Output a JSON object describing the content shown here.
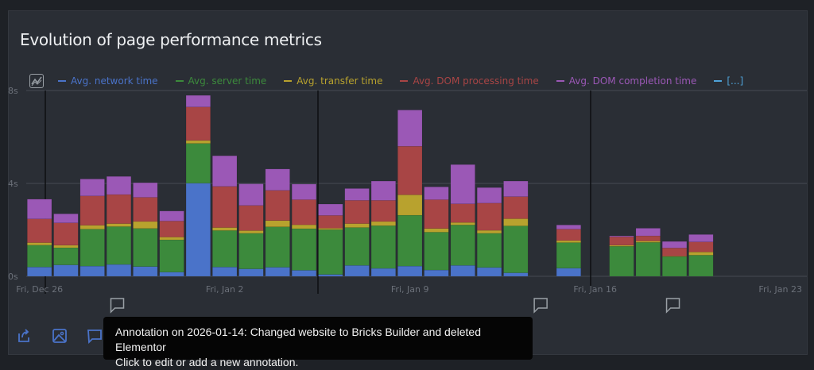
{
  "title": "Evolution of page performance metrics",
  "legend_toggle_icon": "chart-line-icon",
  "chart_data": {
    "type": "bar",
    "stacked": true,
    "title": "Evolution of page performance metrics",
    "xlabel": "",
    "ylabel": "",
    "ylim": [
      0,
      8
    ],
    "y_ticks": [
      "0s",
      "4s",
      "8s"
    ],
    "y_tick_values": [
      0,
      4,
      8
    ],
    "x_ticks": [
      {
        "label": "Fri, Dec 26",
        "date": "2025-12-26"
      },
      {
        "label": "Fri, Jan 2",
        "date": "2026-01-02"
      },
      {
        "label": "Fri, Jan 9",
        "date": "2026-01-09"
      },
      {
        "label": "Fri, Jan 16",
        "date": "2026-01-16"
      },
      {
        "label": "Fri, Jan 23",
        "date": "2026-01-23"
      }
    ],
    "xlim": [
      "2025-12-26",
      "2026-01-24"
    ],
    "grid": true,
    "legend_position": "top",
    "categories": [
      "2025-12-26",
      "2025-12-27",
      "2025-12-28",
      "2025-12-29",
      "2025-12-30",
      "2025-12-31",
      "2026-01-01",
      "2026-01-02",
      "2026-01-03",
      "2026-01-04",
      "2026-01-05",
      "2026-01-06",
      "2026-01-07",
      "2026-01-08",
      "2026-01-09",
      "2026-01-10",
      "2026-01-11",
      "2026-01-12",
      "2026-01-13",
      "2026-01-14",
      "2026-01-15",
      "2026-01-16",
      "2026-01-17",
      "2026-01-18",
      "2026-01-19",
      "2026-01-20"
    ],
    "series": [
      {
        "name": "Avg. network time",
        "color": "#4a73c9",
        "values": [
          0.4,
          0.49,
          0.44,
          0.51,
          0.42,
          0.18,
          4.01,
          0.4,
          0.32,
          0.39,
          0.26,
          0.08,
          0.47,
          0.34,
          0.44,
          0.27,
          0.47,
          0.38,
          0.15,
          null,
          0.35,
          null,
          0,
          0,
          0,
          0
        ]
      },
      {
        "name": "Avg. server time",
        "color": "#3c8a3c",
        "values": [
          0.94,
          0.74,
          1.59,
          1.63,
          1.64,
          1.39,
          1.71,
          1.57,
          1.53,
          1.74,
          1.79,
          1.93,
          1.63,
          1.84,
          2.19,
          1.63,
          1.74,
          1.47,
          2.02,
          null,
          1.1,
          null,
          1.29,
          1.46,
          0.85,
          0.91
        ]
      },
      {
        "name": "Avg. transfer time",
        "color": "#b8a22e",
        "values": [
          0.11,
          0.11,
          0.17,
          0.13,
          0.3,
          0.12,
          0.13,
          0.13,
          0.12,
          0.27,
          0.17,
          0.06,
          0.17,
          0.18,
          0.88,
          0.16,
          0.11,
          0.13,
          0.31,
          null,
          0.09,
          null,
          0.05,
          0.06,
          0.02,
          0.14
        ]
      },
      {
        "name": "Avg. DOM processing time",
        "color": "#a84545",
        "values": [
          1.02,
          0.96,
          1.26,
          1.25,
          1.04,
          0.69,
          1.44,
          1.77,
          1.08,
          1.3,
          1.08,
          0.55,
          1.0,
          0.91,
          2.09,
          1.24,
          0.8,
          1.17,
          0.95,
          null,
          0.49,
          null,
          0.36,
          0.22,
          0.35,
          0.43
        ]
      },
      {
        "name": "Avg. DOM completion time",
        "color": "#9b58b6",
        "values": [
          0.85,
          0.39,
          0.73,
          0.78,
          0.63,
          0.43,
          0.5,
          1.32,
          0.93,
          0.92,
          0.67,
          0.49,
          0.51,
          0.83,
          1.56,
          0.55,
          1.69,
          0.67,
          0.67,
          null,
          0.18,
          null,
          0.04,
          0.33,
          0.28,
          0.32
        ]
      }
    ],
    "legend_more": {
      "label": "[...]",
      "color": "#4fa3d9"
    },
    "annotations": [
      {
        "date": "2025-12-29"
      },
      {
        "date": "2026-01-14",
        "text": "Changed website to Bricks Builder and deleted Elementor"
      },
      {
        "date": "2026-01-19"
      }
    ]
  },
  "tooltip": {
    "line1": "Annotation on 2026-01-14: Changed website to Bricks Builder and deleted Elementor",
    "line2": "Click to edit or add a new annotation."
  },
  "toolbar": {
    "export_icon": "export-icon",
    "image_icon": "image-icon",
    "annotation_icon": "annotation-icon"
  }
}
